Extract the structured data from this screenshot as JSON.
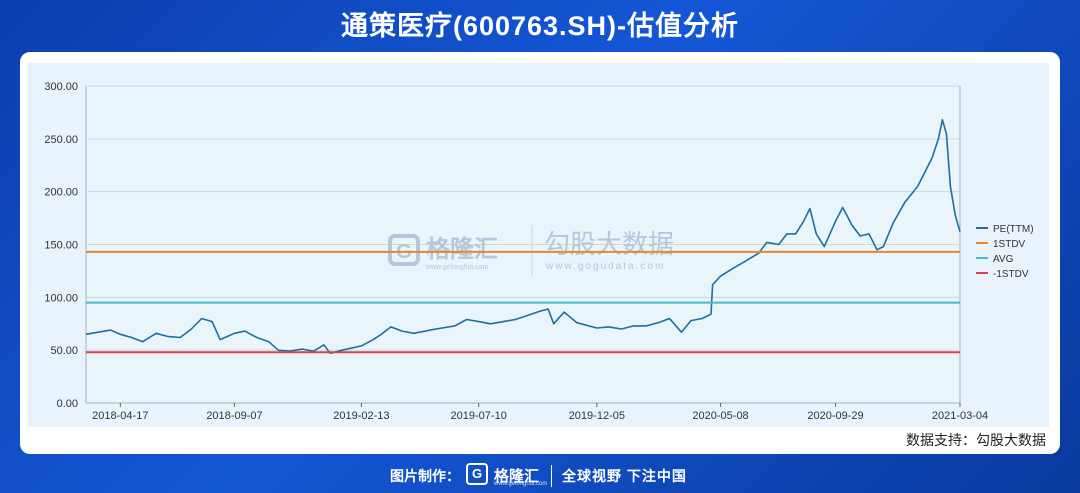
{
  "title": "通策医疗(600763.SH)-估值分析",
  "watermark": {
    "brand": "格隆汇",
    "brand_url": "www.gelonghui.com",
    "partner": "勾股大数据",
    "partner_url": "www.gogudata.com"
  },
  "source_note": "数据支持：勾股大数据",
  "footer": {
    "credit": "图片制作：",
    "logo_mark": "G",
    "logo_name": "格隆汇",
    "logo_url": "www.gelonghui.com",
    "slogan": "全球视野 下注中国"
  },
  "colors": {
    "pe": "#1f6f9c",
    "stdv_plus": "#e8862e",
    "avg": "#49b9c9",
    "stdv_minus": "#d9434b",
    "grid": "#c9d6e3"
  },
  "chart_data": {
    "type": "line",
    "title": "",
    "xlabel": "",
    "ylabel": "",
    "ylim": [
      0,
      300
    ],
    "yticks": [
      "0.00",
      "50.00",
      "100.00",
      "150.00",
      "200.00",
      "250.00",
      "300.00"
    ],
    "xrange": [
      "2018-03-05",
      "2021-03-04"
    ],
    "xticks": [
      "2018-04-17",
      "2018-09-07",
      "2019-02-13",
      "2019-07-10",
      "2019-12-05",
      "2020-05-08",
      "2020-09-29",
      "2021-03-04"
    ],
    "grid": "horizontal",
    "legend_position": "right",
    "series": [
      {
        "name": "PE(TTM)",
        "points": [
          [
            "2018-03-05",
            65
          ],
          [
            "2018-03-20",
            67
          ],
          [
            "2018-04-05",
            69
          ],
          [
            "2018-04-17",
            65
          ],
          [
            "2018-05-01",
            62
          ],
          [
            "2018-05-15",
            58
          ],
          [
            "2018-06-01",
            66
          ],
          [
            "2018-06-15",
            63
          ],
          [
            "2018-07-01",
            62
          ],
          [
            "2018-07-15",
            70
          ],
          [
            "2018-07-28",
            80
          ],
          [
            "2018-08-10",
            77
          ],
          [
            "2018-08-20",
            60
          ],
          [
            "2018-09-07",
            66
          ],
          [
            "2018-09-20",
            68
          ],
          [
            "2018-10-05",
            62
          ],
          [
            "2018-10-20",
            58
          ],
          [
            "2018-11-01",
            50
          ],
          [
            "2018-11-15",
            49
          ],
          [
            "2018-12-01",
            51
          ],
          [
            "2018-12-15",
            49
          ],
          [
            "2018-12-28",
            55
          ],
          [
            "2019-01-05",
            47
          ],
          [
            "2019-01-20",
            50
          ],
          [
            "2019-02-13",
            54
          ],
          [
            "2019-02-28",
            60
          ],
          [
            "2019-03-10",
            65
          ],
          [
            "2019-03-22",
            72
          ],
          [
            "2019-04-05",
            68
          ],
          [
            "2019-04-20",
            66
          ],
          [
            "2019-05-10",
            69
          ],
          [
            "2019-05-25",
            71
          ],
          [
            "2019-06-10",
            73
          ],
          [
            "2019-06-25",
            79
          ],
          [
            "2019-07-10",
            77
          ],
          [
            "2019-07-25",
            75
          ],
          [
            "2019-08-10",
            77
          ],
          [
            "2019-08-25",
            79
          ],
          [
            "2019-09-10",
            83
          ],
          [
            "2019-09-25",
            87
          ],
          [
            "2019-10-05",
            89
          ],
          [
            "2019-10-12",
            75
          ],
          [
            "2019-10-25",
            86
          ],
          [
            "2019-11-10",
            76
          ],
          [
            "2019-11-25",
            73
          ],
          [
            "2019-12-05",
            71
          ],
          [
            "2019-12-20",
            72
          ],
          [
            "2020-01-05",
            70
          ],
          [
            "2020-01-20",
            73
          ],
          [
            "2020-02-05",
            73
          ],
          [
            "2020-02-20",
            76
          ],
          [
            "2020-03-05",
            80
          ],
          [
            "2020-03-20",
            67
          ],
          [
            "2020-04-01",
            78
          ],
          [
            "2020-04-15",
            80
          ],
          [
            "2020-04-26",
            84
          ],
          [
            "2020-04-28",
            112
          ],
          [
            "2020-05-08",
            120
          ],
          [
            "2020-05-25",
            128
          ],
          [
            "2020-06-10",
            135
          ],
          [
            "2020-06-25",
            142
          ],
          [
            "2020-07-05",
            152
          ],
          [
            "2020-07-20",
            150
          ],
          [
            "2020-07-30",
            160
          ],
          [
            "2020-08-10",
            160
          ],
          [
            "2020-08-20",
            172
          ],
          [
            "2020-08-28",
            184
          ],
          [
            "2020-09-05",
            160
          ],
          [
            "2020-09-15",
            148
          ],
          [
            "2020-09-29",
            172
          ],
          [
            "2020-10-08",
            185
          ],
          [
            "2020-10-20",
            168
          ],
          [
            "2020-10-30",
            158
          ],
          [
            "2020-11-10",
            160
          ],
          [
            "2020-11-20",
            145
          ],
          [
            "2020-11-28",
            148
          ],
          [
            "2020-12-10",
            170
          ],
          [
            "2020-12-25",
            190
          ],
          [
            "2021-01-10",
            205
          ],
          [
            "2021-01-20",
            220
          ],
          [
            "2021-01-28",
            232
          ],
          [
            "2021-02-05",
            250
          ],
          [
            "2021-02-10",
            268
          ],
          [
            "2021-02-15",
            255
          ],
          [
            "2021-02-20",
            205
          ],
          [
            "2021-02-26",
            178
          ],
          [
            "2021-03-04",
            162
          ]
        ]
      },
      {
        "name": "1STDV",
        "value": 143
      },
      {
        "name": "AVG",
        "value": 95
      },
      {
        "name": "-1STDV",
        "value": 48
      }
    ]
  }
}
